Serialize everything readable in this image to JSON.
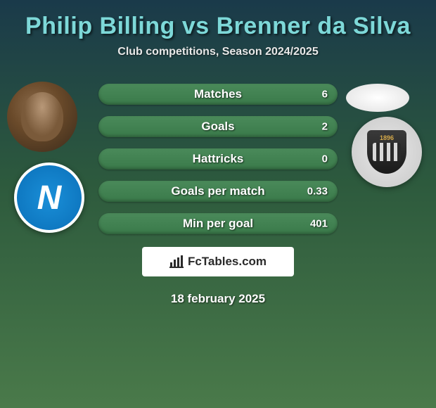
{
  "title": "Philip Billing vs Brenner da Silva",
  "subtitle": "Club competitions, Season 2024/2025",
  "player_left": {
    "name": "Philip Billing",
    "club_letter": "N",
    "club_badge_bg": "#1a8fd8"
  },
  "player_right": {
    "name": "Brenner da Silva",
    "club_year": "1896"
  },
  "stats": [
    {
      "label": "Matches",
      "value": "6"
    },
    {
      "label": "Goals",
      "value": "2"
    },
    {
      "label": "Hattricks",
      "value": "0"
    },
    {
      "label": "Goals per match",
      "value": "0.33"
    },
    {
      "label": "Min per goal",
      "value": "401"
    }
  ],
  "branding": "FcTables.com",
  "date": "18 february 2025",
  "styling": {
    "title_color": "#7dd8d8",
    "title_fontsize": 34,
    "subtitle_fontsize": 16,
    "stat_bar_width": 340,
    "stat_bar_height": 30,
    "stat_bar_bg_top": "#4a8a5a",
    "stat_bar_bg_bottom": "#3a7a4a",
    "stat_bar_radius": 15,
    "stat_label_fontsize": 17,
    "stat_value_fontsize": 15,
    "page_bg_gradient": [
      "#1a3a4a",
      "#2d5a3d",
      "#4a7a4a"
    ],
    "branding_bg": "#ffffff",
    "branding_color": "#2a2a2a",
    "date_fontsize": 17,
    "avatar_diameter": 100
  }
}
